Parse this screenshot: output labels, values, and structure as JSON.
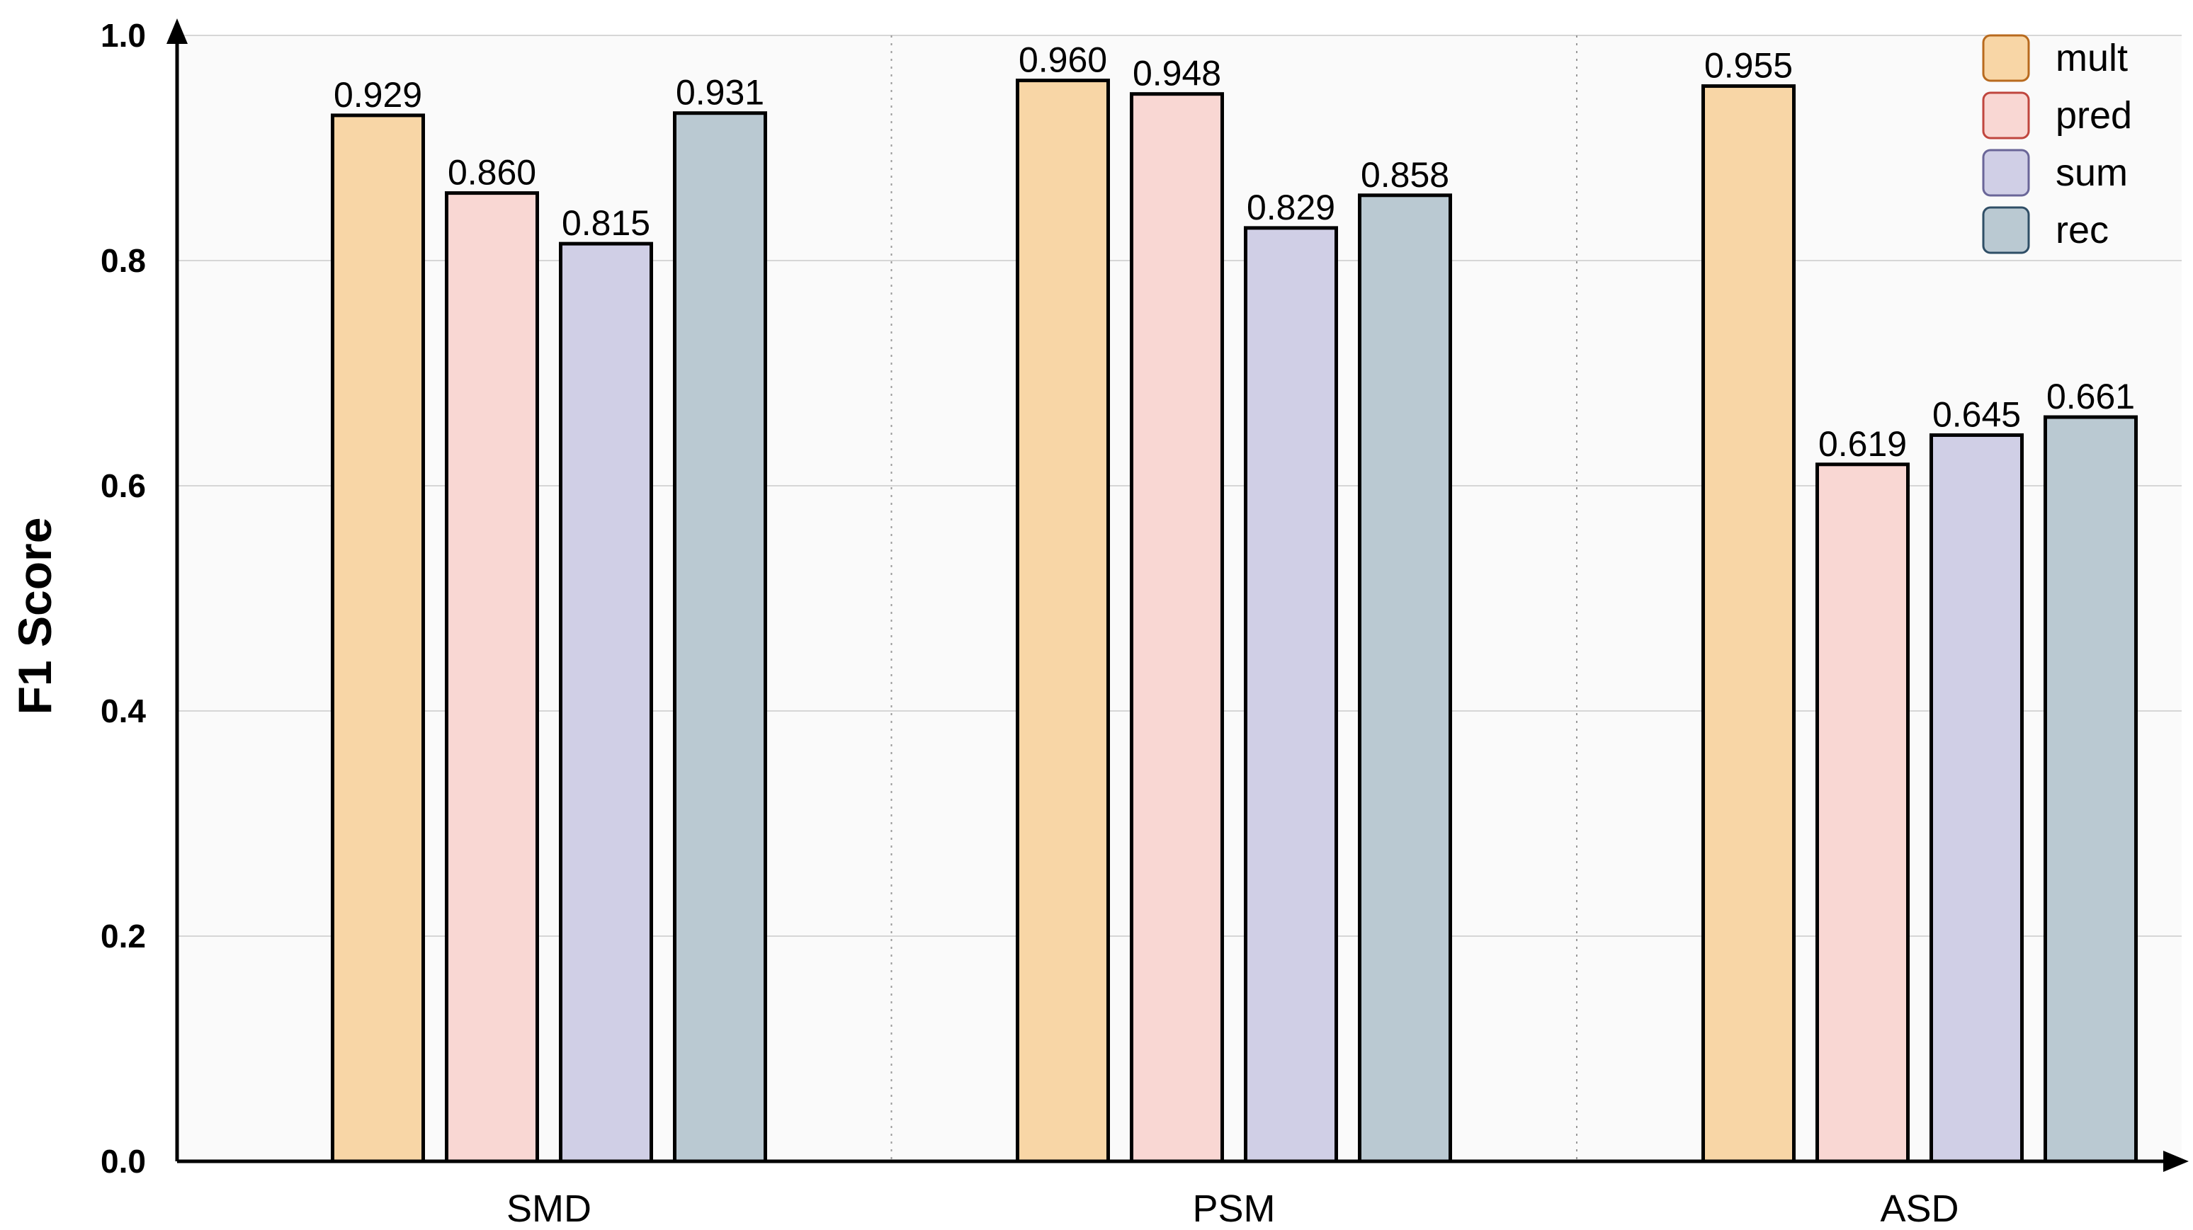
{
  "chart_data": {
    "type": "bar",
    "categories": [
      "SMD",
      "PSM",
      "ASD"
    ],
    "series": [
      {
        "name": "mult",
        "values": [
          0.929,
          0.96,
          0.955
        ],
        "labels": [
          "0.929",
          "0.960",
          "0.955"
        ],
        "color": "#f8d6a6",
        "edge": "#b86a1e"
      },
      {
        "name": "pred",
        "values": [
          0.86,
          0.948,
          0.619
        ],
        "labels": [
          "0.860",
          "0.948",
          "0.619"
        ],
        "color": "#f9d7d3",
        "edge": "#c0463e"
      },
      {
        "name": "sum",
        "values": [
          0.815,
          0.829,
          0.645
        ],
        "labels": [
          "0.815",
          "0.829",
          "0.645"
        ],
        "color": "#d0cfe6",
        "edge": "#6a6698"
      },
      {
        "name": "rec",
        "values": [
          0.931,
          0.858,
          0.661
        ],
        "labels": [
          "0.931",
          "0.858",
          "0.661"
        ],
        "color": "#bac9d2",
        "edge": "#2f4e66"
      }
    ],
    "ylabel": "F1 Score",
    "xlabel": "",
    "ylim": [
      0,
      1.0
    ],
    "yticks": [
      "0.0",
      "0.2",
      "0.4",
      "0.6",
      "0.8",
      "1.0"
    ],
    "grid": true,
    "legend": "top-right",
    "background": "#fafafa",
    "bar_stroke": "#000000"
  }
}
